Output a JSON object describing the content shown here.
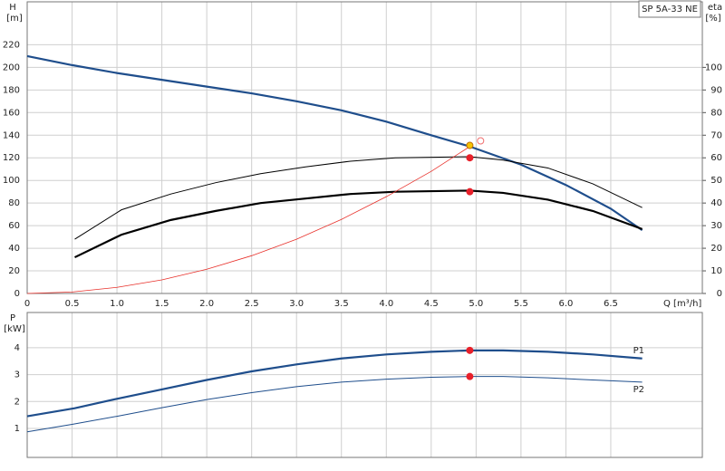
{
  "chart_data": [
    {
      "type": "line",
      "title": "SP 5A-33 NE",
      "ylabel": "H",
      "yunit": "[m]",
      "y2label": "eta",
      "y2unit": "[%]",
      "xlabel": "Q [m³/h]",
      "xlim": [
        0,
        7.52
      ],
      "ylim": [
        0,
        258
      ],
      "y2lim": [
        0,
        129
      ],
      "grid": true,
      "xtick_labels": true,
      "xticks": [
        0,
        0.5,
        {
          "value": 1,
          "label": "1.0"
        },
        1.5,
        {
          "value": 2,
          "label": "2.0"
        },
        2.5,
        {
          "value": 3,
          "label": "3.0"
        },
        3.5,
        {
          "value": 4,
          "label": "4.0"
        },
        4.5,
        {
          "value": 5,
          "label": "5.0"
        },
        5.5,
        {
          "value": 6,
          "label": "6.0"
        },
        6.5
      ],
      "yticks": [
        0,
        20,
        40,
        60,
        80,
        100,
        120,
        140,
        160,
        180,
        200,
        220
      ],
      "y2ticks": [
        0,
        10,
        20,
        30,
        40,
        50,
        60,
        70,
        80,
        90,
        100
      ],
      "series": [
        {
          "color": "#1f4e8c",
          "x": [
            0,
            0.5,
            1,
            1.5,
            2,
            2.5,
            3,
            3.5,
            4,
            4.5,
            4.93,
            5.5,
            6,
            6.5,
            6.85
          ],
          "values": [
            210,
            202,
            195,
            189,
            183,
            177,
            170,
            162,
            152,
            140,
            130,
            114,
            96,
            75,
            56
          ]
        },
        {
          "color": "#000000",
          "axis": "y2",
          "x": [
            0.53,
            1.05,
            1.6,
            2.1,
            2.6,
            3.1,
            3.6,
            4.1,
            4.93,
            5.3,
            5.8,
            6.3,
            6.85
          ],
          "values": [
            16,
            26,
            32.5,
            36.5,
            40,
            42,
            44,
            45,
            45.5,
            44.5,
            41.5,
            36.5,
            28.5
          ]
        },
        {
          "color": "#000000",
          "axis": "y2",
          "x": [
            0.53,
            1.05,
            1.6,
            2.1,
            2.6,
            3.1,
            3.6,
            4.1,
            4.93,
            5.3,
            5.8,
            6.3,
            6.85
          ],
          "values": [
            24,
            37,
            44,
            49,
            53,
            56,
            58.5,
            60,
            60.5,
            59,
            55.5,
            48.5,
            38
          ]
        },
        {
          "color": "#e8302a",
          "x": [
            0,
            0.5,
            1,
            1.5,
            2,
            2.5,
            3,
            3.5,
            4,
            4.5,
            4.93
          ],
          "values": [
            0,
            1.3,
            5.4,
            12,
            21.4,
            33.4,
            48,
            65.5,
            85.6,
            108,
            130
          ]
        }
      ],
      "points": [
        {
          "x": 4.93,
          "y": 131,
          "color": "#f5c400"
        },
        {
          "x": 5.05,
          "y": 135,
          "color": "#f07070",
          "hollow": true
        },
        {
          "x": 4.93,
          "y": 60,
          "axis": "y2",
          "color": "#e8202a"
        },
        {
          "x": 4.93,
          "y": 45,
          "axis": "y2",
          "color": "#e8202a"
        }
      ]
    },
    {
      "type": "line",
      "ylabel": "P",
      "yunit": "[kW]",
      "xlim": [
        0,
        7.52
      ],
      "ylim": [
        -0.08,
        5.31
      ],
      "grid": true,
      "xtick_labels": false,
      "xticks": [
        0,
        0.5,
        1,
        1.5,
        2,
        2.5,
        3,
        3.5,
        4,
        4.5,
        5,
        5.5,
        6,
        6.5
      ],
      "yticks": [
        1,
        2,
        3,
        4
      ],
      "series": [
        {
          "name": "P1",
          "color": "#1f4e8c",
          "x": [
            0,
            0.53,
            1,
            1.5,
            2,
            2.5,
            3,
            3.5,
            4,
            4.5,
            4.93,
            5.3,
            5.8,
            6.3,
            6.85
          ],
          "values": [
            1.45,
            1.75,
            2.1,
            2.45,
            2.8,
            3.12,
            3.38,
            3.6,
            3.75,
            3.85,
            3.9,
            3.9,
            3.85,
            3.75,
            3.6
          ]
        },
        {
          "name": "P2",
          "color": "#1f4e8c",
          "x": [
            0,
            0.5,
            1,
            1.5,
            2,
            2.5,
            3,
            3.5,
            4,
            4.5,
            4.93,
            5.3,
            5.8,
            6.3,
            6.85
          ],
          "values": [
            0.87,
            1.15,
            1.45,
            1.77,
            2.07,
            2.33,
            2.55,
            2.72,
            2.83,
            2.9,
            2.93,
            2.93,
            2.88,
            2.8,
            2.72
          ]
        }
      ],
      "points": [
        {
          "x": 4.93,
          "y": 3.9,
          "color": "#e8202a"
        },
        {
          "x": 4.93,
          "y": 2.93,
          "color": "#e8202a"
        }
      ]
    }
  ]
}
